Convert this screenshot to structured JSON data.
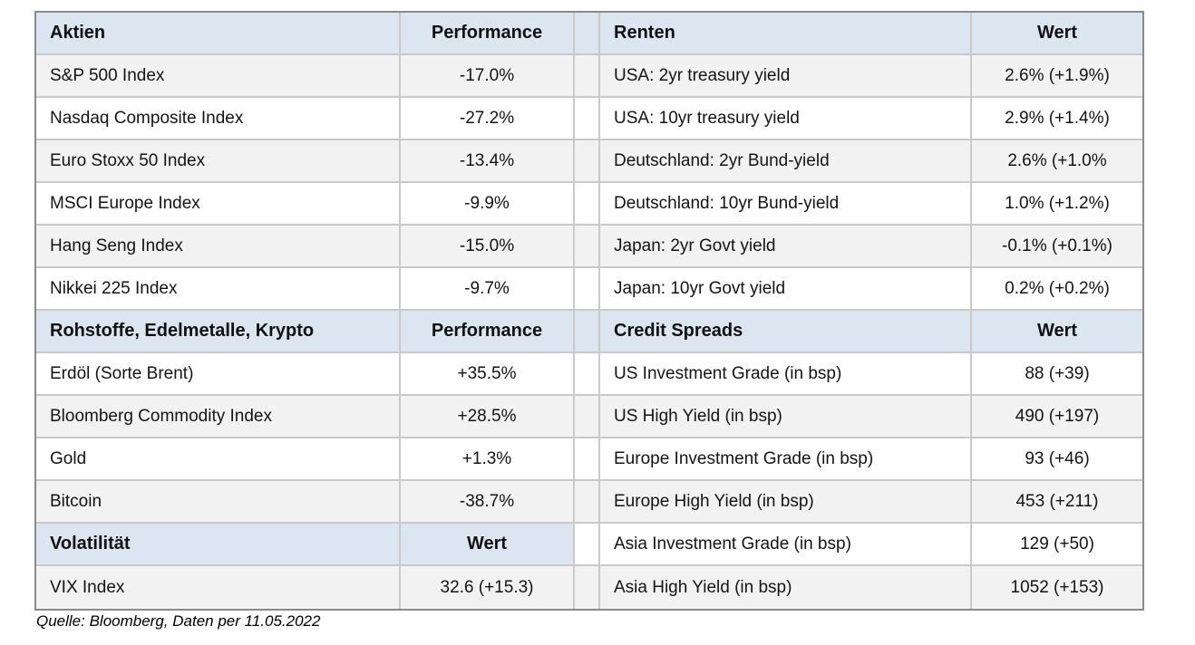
{
  "meta": {
    "source_note": "Quelle: Bloomberg, Daten per 11.05.2022"
  },
  "colors": {
    "header_bg": "#dce6f1",
    "stripe_bg": "#f2f2f2",
    "row_bg": "#ffffff",
    "outer_border": "#8a8a8a",
    "inner_border": "#c9c9c9",
    "text": "#141414"
  },
  "left_table": {
    "sections": [
      {
        "title": "Aktien",
        "value_header": "Performance",
        "rows": [
          [
            "S&P 500 Index",
            "-17.0%"
          ],
          [
            "Nasdaq Composite Index",
            "-27.2%"
          ],
          [
            "Euro Stoxx 50 Index",
            "-13.4%"
          ],
          [
            "MSCI Europe Index",
            "-9.9%"
          ],
          [
            "Hang Seng Index",
            "-15.0%"
          ],
          [
            "Nikkei 225 Index",
            "-9.7%"
          ]
        ]
      },
      {
        "title": "Rohstoffe, Edelmetalle, Krypto",
        "value_header": "Performance",
        "rows": [
          [
            "Erdöl (Sorte Brent)",
            "+35.5%"
          ],
          [
            "Bloomberg Commodity Index",
            "+28.5%"
          ],
          [
            "Gold",
            "+1.3%"
          ],
          [
            "Bitcoin",
            "-38.7%"
          ]
        ]
      },
      {
        "title": "Volatilität",
        "value_header": "Wert",
        "rows": [
          [
            "VIX Index",
            "32.6 (+15.3)"
          ]
        ]
      }
    ]
  },
  "right_table": {
    "sections": [
      {
        "title": "Renten",
        "value_header": "Wert",
        "rows": [
          [
            "USA: 2yr treasury yield",
            "2.6% (+1.9%)"
          ],
          [
            "USA: 10yr treasury yield",
            "2.9% (+1.4%)"
          ],
          [
            "Deutschland: 2yr Bund-yield",
            "2.6% (+1.0%"
          ],
          [
            "Deutschland: 10yr Bund-yield",
            "1.0% (+1.2%)"
          ],
          [
            "Japan: 2yr Govt yield",
            "-0.1% (+0.1%)"
          ],
          [
            "Japan: 10yr Govt yield",
            "0.2% (+0.2%)"
          ]
        ]
      },
      {
        "title": "Credit Spreads",
        "value_header": "Wert",
        "rows": [
          [
            "US Investment Grade (in bsp)",
            "88 (+39)"
          ],
          [
            "US High Yield (in bsp)",
            "490 (+197)"
          ],
          [
            "Europe Investment Grade (in bsp)",
            "93 (+46)"
          ],
          [
            "Europe High Yield (in bsp)",
            "453 (+211)"
          ],
          [
            "Asia Investment Grade (in bsp)",
            "129 (+50)"
          ],
          [
            "Asia High Yield (in bsp)",
            "1052 (+153)"
          ]
        ]
      }
    ]
  }
}
